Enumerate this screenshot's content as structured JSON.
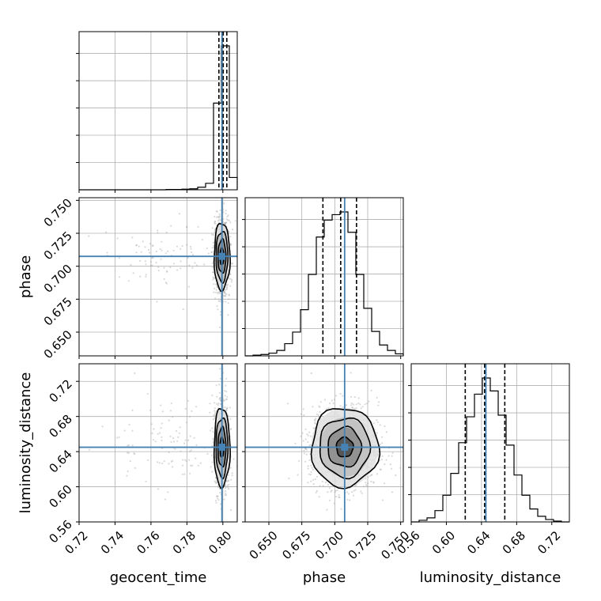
{
  "chart_data": {
    "type": "corner",
    "parameters": [
      "geocent_time",
      "phase",
      "luminosity_distance"
    ],
    "axis_labels": {
      "x": [
        "geocent_time",
        "phase",
        "luminosity_distance"
      ],
      "y": [
        "",
        "phase",
        "luminosity_distance"
      ]
    },
    "ranges": {
      "geocent_time": [
        0.72,
        0.808
      ],
      "phase": [
        0.632,
        0.752
      ],
      "luminosity_distance": [
        0.56,
        0.74
      ]
    },
    "ticks": {
      "geocent_time": [
        "0.72",
        "0.74",
        "0.76",
        "0.78",
        "0.80"
      ],
      "phase": [
        "0.650",
        "0.675",
        "0.700",
        "0.725",
        "0.750"
      ],
      "luminosity_distance": [
        "0.56",
        "0.60",
        "0.64",
        "0.68",
        "0.72"
      ]
    },
    "truths": {
      "geocent_time": 0.7995,
      "phase": 0.7075,
      "luminosity_distance": 0.645
    },
    "quantiles": {
      "geocent_time": [
        0.7978,
        0.8002,
        0.8022
      ],
      "phase": [
        0.691,
        0.7045,
        0.7165
      ],
      "luminosity_distance": [
        0.6215,
        0.6435,
        0.6665
      ]
    },
    "histograms": {
      "geocent_time": {
        "edges": [
          0.72,
          0.7244,
          0.7288,
          0.7332,
          0.7376,
          0.742,
          0.7464,
          0.7508,
          0.7552,
          0.7596,
          0.764,
          0.7684,
          0.7728,
          0.7772,
          0.7816,
          0.786,
          0.7904,
          0.7948,
          0.7992,
          0.8036,
          0.808
        ],
        "counts": [
          0,
          0,
          0,
          0,
          0,
          0,
          0,
          0,
          0,
          0,
          0,
          1,
          1,
          2,
          3,
          8,
          20,
          268,
          445,
          38
        ]
      },
      "phase": {
        "edges": [
          0.632,
          0.638,
          0.644,
          0.65,
          0.656,
          0.662,
          0.668,
          0.674,
          0.68,
          0.686,
          0.692,
          0.698,
          0.704,
          0.71,
          0.716,
          0.722,
          0.728,
          0.734,
          0.74,
          0.746,
          0.752
        ],
        "counts": [
          0,
          1,
          2,
          4,
          8,
          18,
          35,
          68,
          120,
          175,
          200,
          208,
          212,
          182,
          120,
          70,
          36,
          16,
          8,
          3
        ]
      },
      "luminosity_distance": {
        "edges": [
          0.56,
          0.569,
          0.578,
          0.587,
          0.596,
          0.605,
          0.614,
          0.623,
          0.632,
          0.641,
          0.65,
          0.659,
          0.668,
          0.677,
          0.686,
          0.695,
          0.704,
          0.713,
          0.722,
          0.731,
          0.74
        ],
        "counts": [
          0,
          2,
          5,
          14,
          33,
          60,
          98,
          130,
          158,
          178,
          162,
          132,
          95,
          58,
          33,
          16,
          7,
          3,
          1,
          0
        ]
      }
    },
    "grid": true,
    "truth_color": "#4682b4",
    "contour_color": "#000000",
    "point_color": "#aaaaaa"
  }
}
